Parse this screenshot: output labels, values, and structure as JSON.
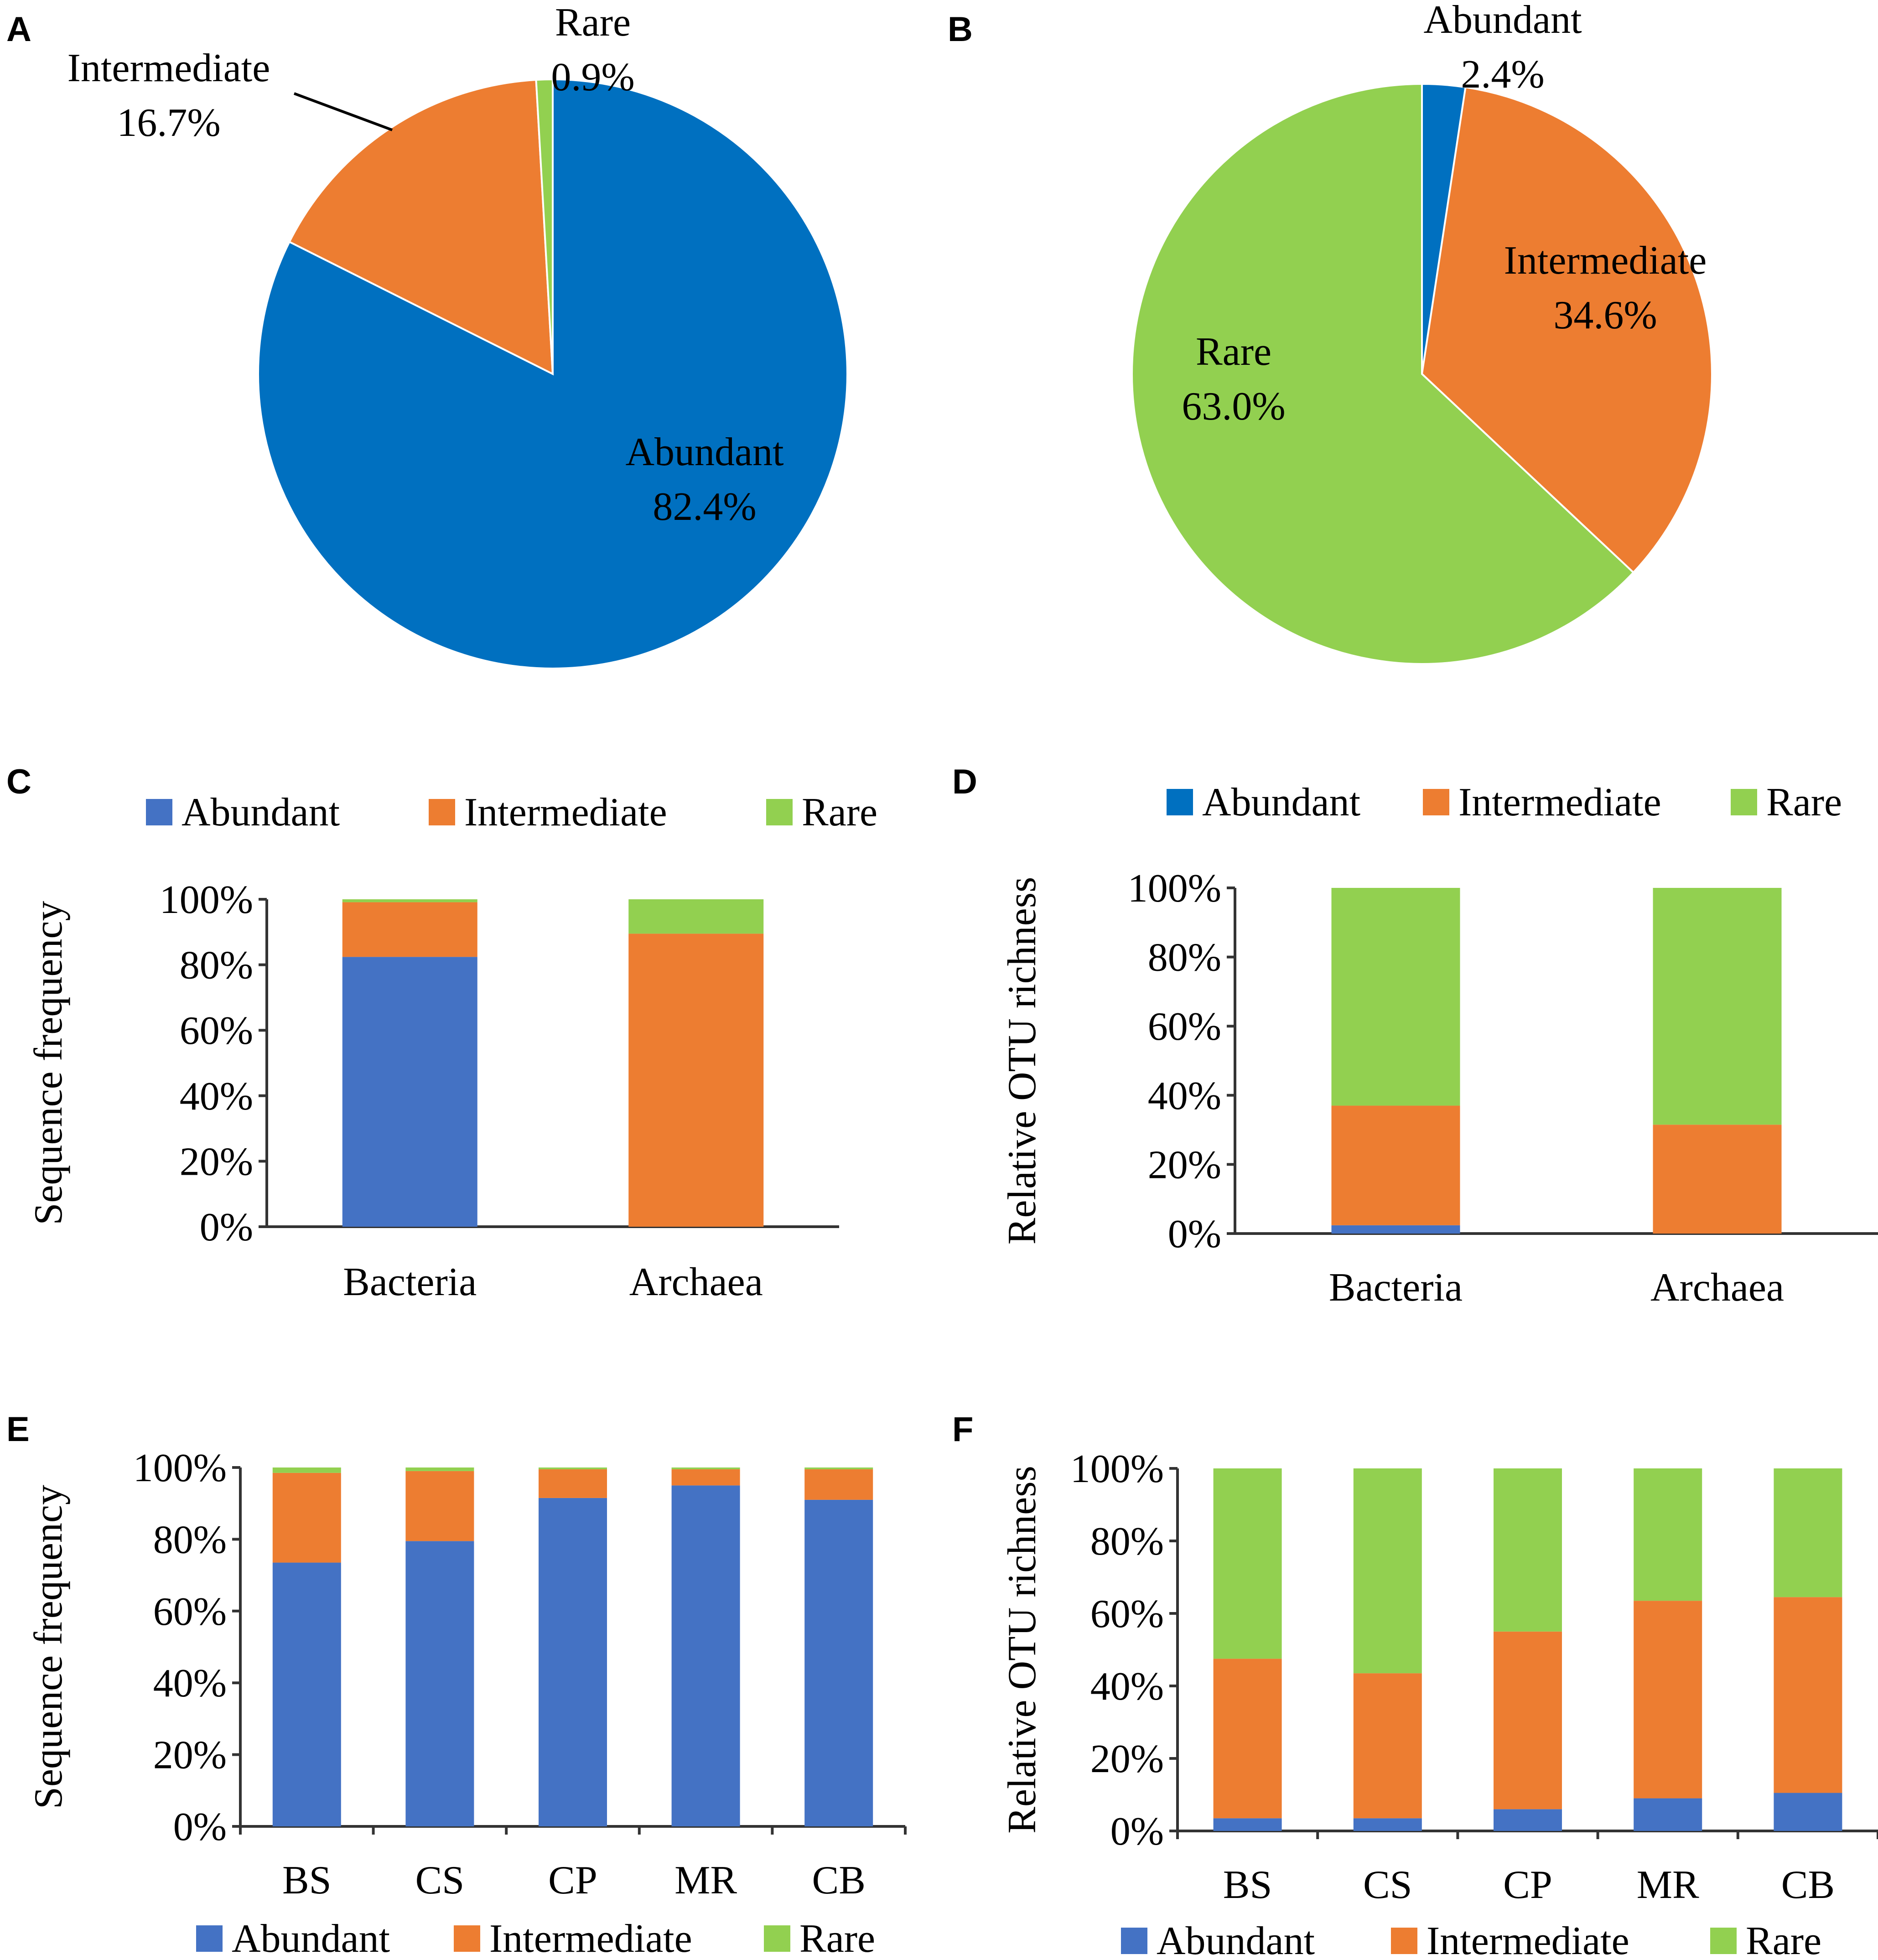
{
  "colors": {
    "abundant_pie": "#0070C0",
    "abundant_bar": "#4472C4",
    "intermediate": "#ED7D31",
    "rare": "#92D050",
    "axis": "#333333",
    "text": "#000000"
  },
  "legend_labels": [
    "Abundant",
    "Intermediate",
    "Rare"
  ],
  "chart_data": [
    {
      "panel": "A",
      "type": "pie",
      "start": "12 o'clock, clockwise",
      "slices": [
        {
          "label": "Abundant",
          "value": 82.4,
          "text": "82.4%",
          "color_key": "abundant_pie"
        },
        {
          "label": "Intermediate",
          "value": 16.7,
          "text": "16.7%",
          "color_key": "intermediate"
        },
        {
          "label": "Rare",
          "value": 0.9,
          "text": "0.9%",
          "color_key": "rare"
        }
      ]
    },
    {
      "panel": "B",
      "type": "pie",
      "start": "12 o'clock, clockwise",
      "slices": [
        {
          "label": "Abundant",
          "value": 2.4,
          "text": "2.4%",
          "color_key": "abundant_pie"
        },
        {
          "label": "Intermediate",
          "value": 34.6,
          "text": "34.6%",
          "color_key": "intermediate"
        },
        {
          "label": "Rare",
          "value": 63.0,
          "text": "63.0%",
          "color_key": "rare"
        }
      ]
    },
    {
      "panel": "C",
      "type": "bar",
      "stacked": true,
      "legend": "top",
      "categories": [
        "Bacteria",
        "Archaea"
      ],
      "ylabel": "Sequence frequency",
      "ylim": [
        0,
        100
      ],
      "yticks": [
        "0%",
        "20%",
        "40%",
        "60%",
        "80%",
        "100%"
      ],
      "series": [
        {
          "name": "Abundant",
          "values": [
            82.4,
            0.0
          ]
        },
        {
          "name": "Intermediate",
          "values": [
            16.7,
            89.5
          ]
        },
        {
          "name": "Rare",
          "values": [
            0.9,
            10.5
          ]
        }
      ]
    },
    {
      "panel": "D",
      "type": "bar",
      "stacked": true,
      "legend": "top",
      "categories": [
        "Bacteria",
        "Archaea"
      ],
      "ylabel": "Relative OTU richness",
      "ylim": [
        0,
        100
      ],
      "yticks": [
        "0%",
        "20%",
        "40%",
        "60%",
        "80%",
        "100%"
      ],
      "series": [
        {
          "name": "Abundant",
          "values": [
            2.4,
            0.0
          ]
        },
        {
          "name": "Intermediate",
          "values": [
            34.6,
            31.5
          ]
        },
        {
          "name": "Rare",
          "values": [
            63.0,
            68.5
          ]
        }
      ]
    },
    {
      "panel": "E",
      "type": "bar",
      "stacked": true,
      "legend": "bottom",
      "categories": [
        "BS",
        "CS",
        "CP",
        "MR",
        "CB"
      ],
      "ylabel": "Sequence frequency",
      "ylim": [
        0,
        100
      ],
      "yticks": [
        "0%",
        "20%",
        "40%",
        "60%",
        "80%",
        "100%"
      ],
      "series": [
        {
          "name": "Abundant",
          "values": [
            73.5,
            79.5,
            91.5,
            95.0,
            91.0
          ]
        },
        {
          "name": "Intermediate",
          "values": [
            25.0,
            19.5,
            8.0,
            4.5,
            8.5
          ]
        },
        {
          "name": "Rare",
          "values": [
            1.5,
            1.0,
            0.5,
            0.5,
            0.5
          ]
        }
      ]
    },
    {
      "panel": "F",
      "type": "bar",
      "stacked": true,
      "legend": "bottom",
      "categories": [
        "BS",
        "CS",
        "CP",
        "MR",
        "CB"
      ],
      "ylabel": "Relative OTU richness",
      "ylim": [
        0,
        100
      ],
      "yticks": [
        "0%",
        "20%",
        "40%",
        "60%",
        "80%",
        "100%"
      ],
      "series": [
        {
          "name": "Abundant",
          "values": [
            3.5,
            3.5,
            6.0,
            9.0,
            10.5
          ]
        },
        {
          "name": "Intermediate",
          "values": [
            44.0,
            40.0,
            49.0,
            54.5,
            54.0
          ]
        },
        {
          "name": "Rare",
          "values": [
            52.5,
            56.5,
            45.0,
            36.5,
            35.5
          ]
        }
      ]
    }
  ]
}
